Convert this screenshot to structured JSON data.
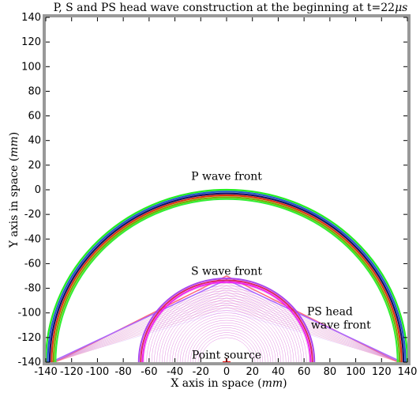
{
  "chart_data": {
    "type": "line",
    "title_main": "P, S and PS head wave construction at the beginning at t=22",
    "title_unit": "μs",
    "xlabel_main": "X axis in space ",
    "ylabel_main": "Y axis in space ",
    "axis_unit": "mm",
    "xlim": [
      -140,
      140
    ],
    "ylim": [
      -140,
      140
    ],
    "grid": false,
    "x_ticks": [
      -140,
      -120,
      -100,
      -80,
      -60,
      -40,
      -20,
      0,
      20,
      40,
      60,
      80,
      100,
      120,
      140
    ],
    "y_ticks": [
      -140,
      -120,
      -100,
      -80,
      -60,
      -40,
      -20,
      0,
      20,
      40,
      60,
      80,
      100,
      120,
      140
    ],
    "source": {
      "x": 0,
      "y": -140
    },
    "p_wave": {
      "label": "P wave front",
      "label_pos": [
        0,
        8
      ],
      "fronts": [
        {
          "radius": 140,
          "color": "#22ee22"
        },
        {
          "radius": 138.5,
          "color": "#2255cc"
        },
        {
          "radius": 137,
          "color": "#111166"
        },
        {
          "radius": 135.5,
          "color": "#dd3311"
        },
        {
          "radius": 134,
          "color": "#77aa00"
        },
        {
          "radius": 132.5,
          "color": "#33ee33"
        }
      ]
    },
    "s_wave": {
      "label": "S wave front",
      "label_pos": [
        0,
        -69
      ],
      "fronts": [
        {
          "radius": 68,
          "color": "#aa44ee"
        },
        {
          "radius": 66.5,
          "color": "#dd2266"
        },
        {
          "radius": 65,
          "color": "#ee22ee"
        }
      ],
      "fan_radius_min": 20,
      "fan_radius_max": 68,
      "fan_color": "#cc33cc"
    },
    "ps_head": {
      "label_line1": "PS head",
      "label_line2": "wave front",
      "label_pos": [
        80,
        -112
      ],
      "lines": [
        {
          "x_end": 133,
          "y_top": -70,
          "color": "#ff6677"
        },
        {
          "x_end": 136,
          "y_top": -73,
          "color": "#aa66ff"
        }
      ]
    },
    "source_label": "Point source",
    "source_label_pos": [
      0,
      -137
    ]
  }
}
